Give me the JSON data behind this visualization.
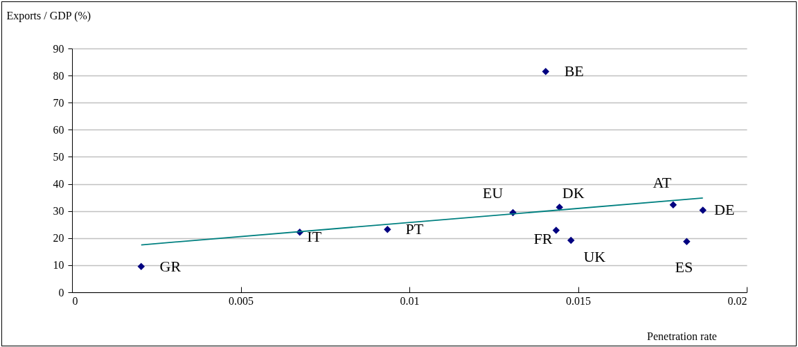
{
  "chart_data": {
    "type": "scatter",
    "xlabel": "Penetration rate",
    "ylabel": "Exports / GDP (%)",
    "x": [
      0.00205,
      0.00675,
      0.00935,
      0.01307,
      0.01445,
      0.01435,
      0.01479,
      0.01404,
      0.01782,
      0.0187,
      0.01822
    ],
    "series": [
      {
        "color": "#000080",
        "values": [
          9.5,
          22.2,
          23.2,
          29.4,
          31.4,
          22.9,
          19.2,
          81.5,
          32.3,
          30.3,
          18.7
        ],
        "value_labels": [
          "GR",
          "IT",
          "PT",
          "EU",
          "DK",
          "FR",
          "UK",
          "BE",
          "AT",
          "DE",
          "ES"
        ]
      },
      {
        "type": "line",
        "color": "#008080",
        "marker": "none",
        "x": [
          0.00205,
          0.0187
        ],
        "values": [
          17.5,
          34.8
        ]
      }
    ],
    "xlim": [
      0,
      0.02
    ],
    "xticks": [
      0,
      0.005,
      0.01,
      0.015,
      0.02
    ],
    "ylim": [
      0,
      90
    ],
    "yticks": [
      0,
      10,
      20,
      30,
      40,
      50,
      60,
      70,
      80,
      90
    ],
    "grid": "y",
    "marker": "diamond",
    "line_style": "solid"
  }
}
